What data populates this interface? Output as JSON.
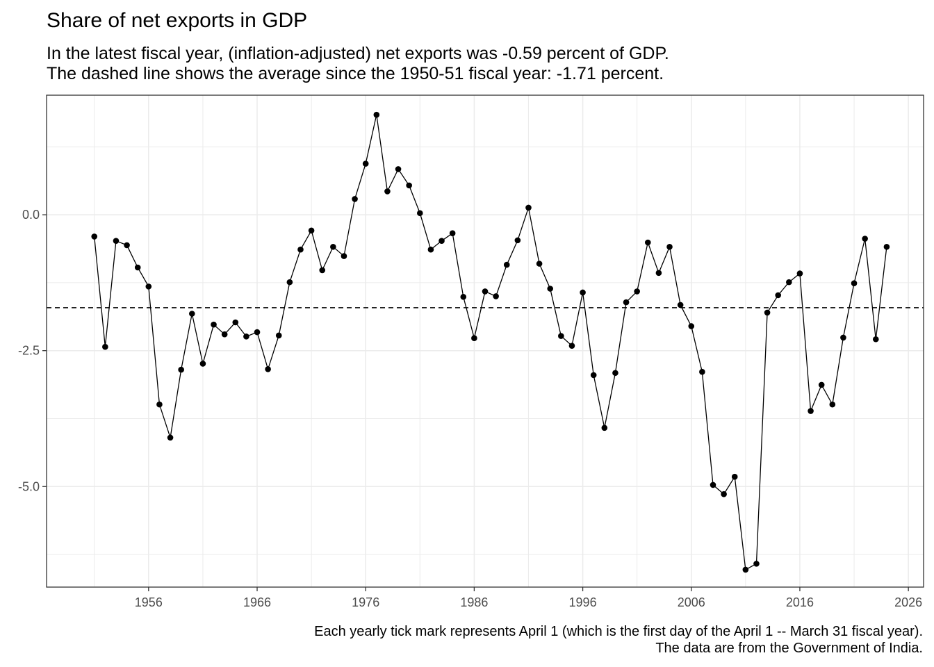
{
  "chart_data": {
    "type": "line",
    "title": "Share of net exports in GDP",
    "subtitle_lines": [
      "In the latest fiscal year, (inflation-adjusted) net exports was -0.59 percent of GDP.",
      "The dashed line shows the average since the 1950-51 fiscal year: -1.71 percent."
    ],
    "caption_lines": [
      "Each yearly tick mark represents April 1 (which is the first day of the April 1 -- March 31 fiscal year).",
      "The data are from the Government of India."
    ],
    "xlabel": "",
    "ylabel": "",
    "x_ticks": [
      1956,
      1966,
      1976,
      1986,
      1996,
      2006,
      2016,
      2026
    ],
    "x_tick_labels": [
      "1956",
      "1966",
      "1976",
      "1986",
      "1996",
      "2006",
      "2016",
      "2026"
    ],
    "y_ticks": [
      0.0,
      -2.5,
      -5.0
    ],
    "y_tick_labels": [
      "0.0",
      "-2.5",
      "-5.0"
    ],
    "xlim": [
      1946.6,
      2027.4
    ],
    "ylim": [
      -6.85,
      2.2
    ],
    "average_line": -1.71,
    "grid": true,
    "series": [
      {
        "x": [
          1951,
          1952,
          1953,
          1954,
          1955,
          1956,
          1957,
          1958,
          1959,
          1960,
          1961,
          1962,
          1963,
          1964,
          1965,
          1966,
          1967,
          1968,
          1969,
          1970,
          1971,
          1972,
          1973,
          1974,
          1975,
          1976,
          1977,
          1978,
          1979,
          1980,
          1981,
          1982,
          1983,
          1984,
          1985,
          1986,
          1987,
          1988,
          1989,
          1990,
          1991,
          1992,
          1993,
          1994,
          1995,
          1996,
          1997,
          1998,
          1999,
          2000,
          2001,
          2002,
          2003,
          2004,
          2005,
          2006,
          2007,
          2008,
          2009,
          2010,
          2011,
          2012,
          2013,
          2014,
          2015,
          2016,
          2017,
          2018,
          2019,
          2020,
          2021,
          2022,
          2023,
          2024
        ],
        "y": [
          -0.4,
          -2.43,
          -0.48,
          -0.56,
          -0.97,
          -1.32,
          -3.49,
          -4.1,
          -2.85,
          -1.82,
          -2.74,
          -2.02,
          -2.2,
          -1.98,
          -2.24,
          -2.16,
          -2.84,
          -2.22,
          -1.24,
          -0.64,
          -0.29,
          -1.02,
          -0.59,
          -0.76,
          0.29,
          0.94,
          1.84,
          0.43,
          0.84,
          0.54,
          0.03,
          -0.64,
          -0.48,
          -0.34,
          -1.51,
          -2.27,
          -1.41,
          -1.5,
          -0.92,
          -0.47,
          0.13,
          -0.9,
          -1.36,
          -2.23,
          -2.41,
          -1.43,
          -2.95,
          -3.92,
          -2.91,
          -1.61,
          -1.41,
          -0.51,
          -1.07,
          -0.59,
          -1.66,
          -2.05,
          -2.89,
          -4.97,
          -5.14,
          -4.82,
          -6.53,
          -6.42,
          -1.8,
          -1.48,
          -1.24,
          -1.08,
          -3.61,
          -3.13,
          -3.49,
          -2.26,
          -1.26,
          -0.44,
          -2.29,
          -0.59
        ]
      }
    ],
    "colors": {
      "line": "#000000",
      "points": "#000000",
      "grid": "#ebebeb",
      "panel_border": "#333333",
      "tick_text": "#4d4d4d"
    }
  }
}
